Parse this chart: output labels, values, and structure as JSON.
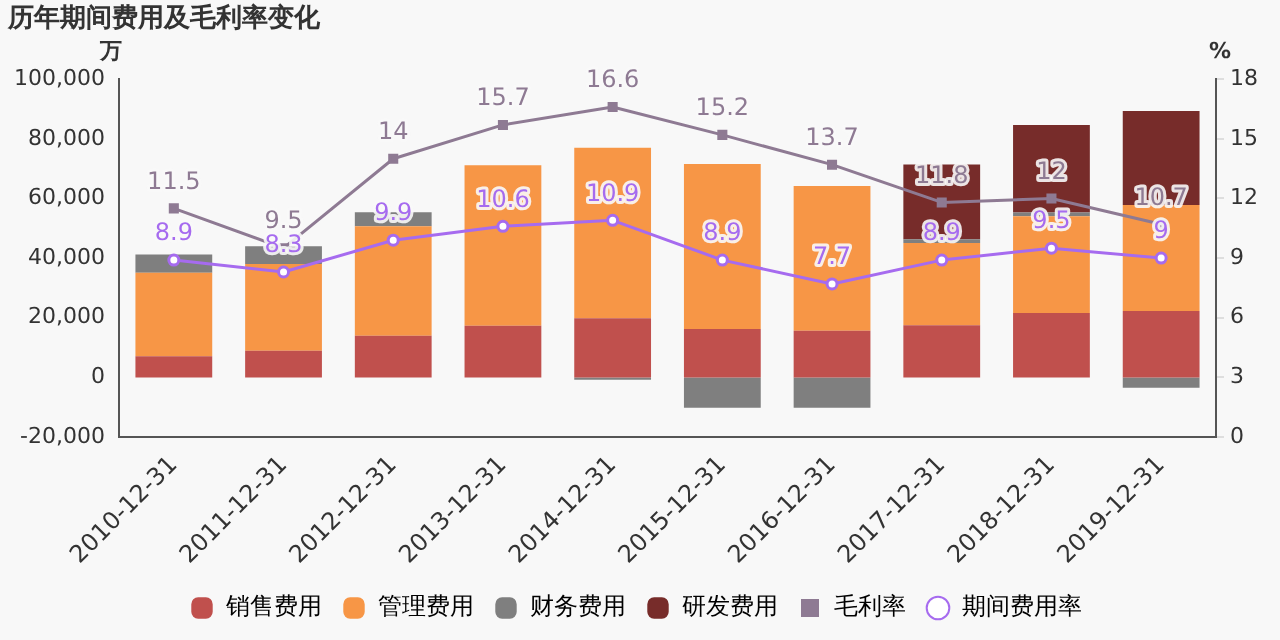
{
  "chart_data": {
    "type": "bar",
    "stacked": true,
    "title": "历年期间费用及毛利率变化",
    "ylabel": "万",
    "y2label": "%",
    "categories": [
      "2010-12-31",
      "2011-12-31",
      "2012-12-31",
      "2013-12-31",
      "2014-12-31",
      "2015-12-31",
      "2016-12-31",
      "2017-12-31",
      "2018-12-31",
      "2019-12-31"
    ],
    "ylim": [
      -20000,
      100000
    ],
    "yticks": [
      {
        "value": -20000,
        "label": "-20,000"
      },
      0,
      {
        "value": 20000,
        "label": "20,000"
      },
      {
        "value": 40000,
        "label": "40,000"
      },
      {
        "value": 60000,
        "label": "60,000"
      },
      {
        "value": 80000,
        "label": "80,000"
      },
      {
        "value": 100000,
        "label": "100,000"
      }
    ],
    "y2lim": [
      0,
      18
    ],
    "y2ticks": [
      0,
      3,
      6,
      9,
      12,
      15,
      18
    ],
    "grid": false,
    "legend": "bottom",
    "series": [
      {
        "name": "销售费用",
        "color": "#c0504d",
        "values": [
          7100,
          8900,
          14000,
          17300,
          19800,
          16200,
          15600,
          17500,
          21600,
          22300
        ]
      },
      {
        "name": "管理费用",
        "color": "#f79646",
        "values": [
          28000,
          29100,
          36700,
          53800,
          57200,
          55400,
          48600,
          27600,
          32400,
          35500
        ]
      },
      {
        "name": "财务费用",
        "color": "#7f7f7f",
        "values": [
          6100,
          6000,
          4700,
          0,
          -800,
          -10200,
          -10200,
          1200,
          1300,
          -3500
        ]
      },
      {
        "name": "研发费用",
        "color": "#772c2a",
        "values": [
          null,
          null,
          null,
          null,
          null,
          null,
          null,
          25100,
          29300,
          31500
        ]
      },
      {
        "name": "毛利率",
        "type": "line",
        "axis": "y2",
        "marker": "square",
        "color": "#8e7a93",
        "values": [
          11.5,
          9.5,
          14,
          15.7,
          16.6,
          15.2,
          13.7,
          11.8,
          12,
          10.7
        ],
        "value_labels": [
          "11.5",
          "9.5",
          "14",
          "15.7",
          "16.6",
          "15.2",
          "13.7",
          "11.8",
          "12",
          "10.7"
        ]
      },
      {
        "name": "期间费用率",
        "type": "line",
        "axis": "y2",
        "marker": "circle",
        "color": "#a66bef",
        "values": [
          8.9,
          8.3,
          9.9,
          10.6,
          10.9,
          8.9,
          7.7,
          8.9,
          9.5,
          9
        ],
        "value_labels": [
          "8.9",
          "8.3",
          "9.9",
          "10.6",
          "10.9",
          "8.9",
          "7.7",
          "8.9",
          "9.5",
          "9"
        ]
      }
    ]
  }
}
